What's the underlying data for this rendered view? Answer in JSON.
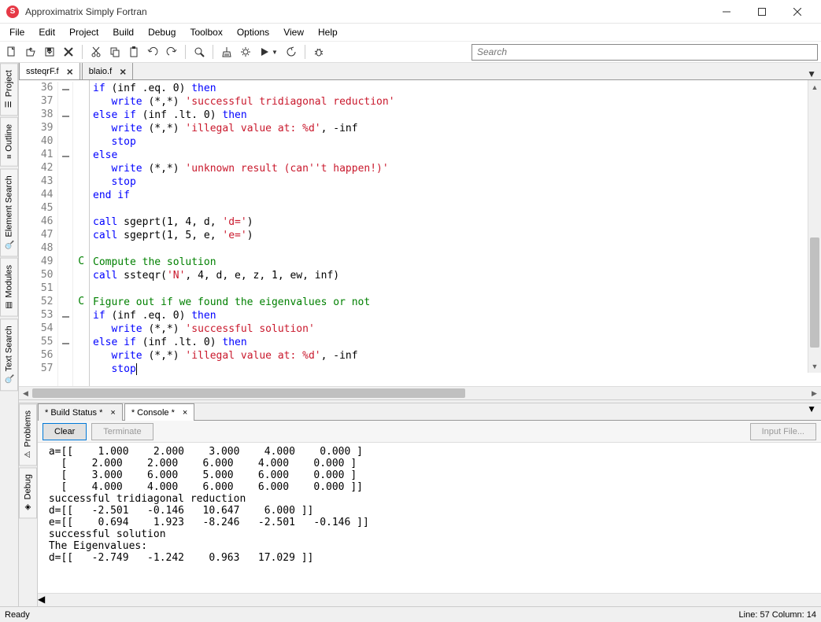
{
  "window": {
    "title": "Approximatrix Simply Fortran"
  },
  "menu": [
    "File",
    "Edit",
    "Project",
    "Build",
    "Debug",
    "Toolbox",
    "Options",
    "View",
    "Help"
  ],
  "toolbar": {
    "search_placeholder": "Search"
  },
  "side_tabs_left": [
    {
      "label": "Project",
      "icon": "☰"
    },
    {
      "label": "Outline",
      "icon": "≡"
    },
    {
      "label": "Element Search",
      "icon": "🔍"
    },
    {
      "label": "Modules",
      "icon": "▤"
    },
    {
      "label": "Text Search",
      "icon": "🔍"
    }
  ],
  "editor": {
    "tabs": [
      {
        "name": "ssteqrF.f",
        "active": true
      },
      {
        "name": "blaio.f",
        "active": false
      }
    ],
    "first_line": 36,
    "lines": [
      {
        "n": 36,
        "fold": "-",
        "c": "",
        "html": "<span class='kw'>if</span> (inf .eq. <span class='num'>0</span>) <span class='kw'>then</span>"
      },
      {
        "n": 37,
        "fold": "",
        "c": "",
        "html": "   <span class='kw'>write</span> (*,*) <span class='str'>'successful tridiagonal reduction'</span>"
      },
      {
        "n": 38,
        "fold": "-",
        "c": "",
        "html": "<span class='kw'>else if</span> (inf .lt. <span class='num'>0</span>) <span class='kw'>then</span>"
      },
      {
        "n": 39,
        "fold": "",
        "c": "",
        "html": "   <span class='kw'>write</span> (*,*) <span class='str'>'illegal value at: %d'</span>, -inf"
      },
      {
        "n": 40,
        "fold": "",
        "c": "",
        "html": "   <span class='kw'>stop</span>"
      },
      {
        "n": 41,
        "fold": "-",
        "c": "",
        "html": "<span class='kw'>else</span>"
      },
      {
        "n": 42,
        "fold": "",
        "c": "",
        "html": "   <span class='kw'>write</span> (*,*) <span class='str'>'unknown result (can''t happen!)'</span>"
      },
      {
        "n": 43,
        "fold": "",
        "c": "",
        "html": "   <span class='kw'>stop</span>"
      },
      {
        "n": 44,
        "fold": "",
        "c": "",
        "html": "<span class='kw'>end if</span>"
      },
      {
        "n": 45,
        "fold": "",
        "c": "",
        "html": ""
      },
      {
        "n": 46,
        "fold": "",
        "c": "",
        "html": "<span class='kw'>call</span> sgeprt(<span class='num'>1</span>, <span class='num'>4</span>, d, <span class='str'>'d='</span>)"
      },
      {
        "n": 47,
        "fold": "",
        "c": "",
        "html": "<span class='kw'>call</span> sgeprt(<span class='num'>1</span>, <span class='num'>5</span>, e, <span class='str'>'e='</span>)"
      },
      {
        "n": 48,
        "fold": "",
        "c": "",
        "html": ""
      },
      {
        "n": 49,
        "fold": "",
        "c": "C",
        "html": "<span class='cmt'>Compute the solution</span>"
      },
      {
        "n": 50,
        "fold": "",
        "c": "",
        "html": "<span class='kw'>call</span> ssteqr(<span class='str'>'N'</span>, <span class='num'>4</span>, d, e, z, <span class='num'>1</span>, ew, inf)"
      },
      {
        "n": 51,
        "fold": "",
        "c": "",
        "html": ""
      },
      {
        "n": 52,
        "fold": "",
        "c": "C",
        "html": "<span class='cmt'>Figure out if we found the eigenvalues or not</span>"
      },
      {
        "n": 53,
        "fold": "-",
        "c": "",
        "html": "<span class='kw'>if</span> (inf .eq. <span class='num'>0</span>) <span class='kw'>then</span>"
      },
      {
        "n": 54,
        "fold": "",
        "c": "",
        "html": "   <span class='kw'>write</span> (*,*) <span class='str'>'successful solution'</span>"
      },
      {
        "n": 55,
        "fold": "-",
        "c": "",
        "html": "<span class='kw'>else if</span> (inf .lt. <span class='num'>0</span>) <span class='kw'>then</span>"
      },
      {
        "n": 56,
        "fold": "",
        "c": "",
        "html": "   <span class='kw'>write</span> (*,*) <span class='str'>'illegal value at: %d'</span>, -inf"
      },
      {
        "n": 57,
        "fold": "",
        "c": "",
        "html": "   <span class='kw'>stop</span><span class='cursor'></span>"
      }
    ]
  },
  "bottom": {
    "side_tabs": [
      {
        "label": "Problems",
        "icon": "⚠"
      },
      {
        "label": "Debug",
        "icon": "◈"
      }
    ],
    "tabs": [
      {
        "name": "* Build Status *",
        "active": false
      },
      {
        "name": "* Console *",
        "active": true
      }
    ],
    "buttons": {
      "clear": "Clear",
      "terminate": "Terminate",
      "input": "Input File..."
    },
    "output": " a=[[    1.000    2.000    3.000    4.000    0.000 ]\n   [    2.000    2.000    6.000    4.000    0.000 ]\n   [    3.000    6.000    5.000    6.000    0.000 ]\n   [    4.000    4.000    6.000    6.000    0.000 ]]\n successful tridiagonal reduction\n d=[[   -2.501   -0.146   10.647    6.000 ]]\n e=[[    0.694    1.923   -8.246   -2.501   -0.146 ]]\n successful solution\n The Eigenvalues:\n d=[[   -2.749   -1.242    0.963   17.029 ]]"
  },
  "status": {
    "left": "Ready",
    "right": "Line: 57 Column: 14"
  }
}
